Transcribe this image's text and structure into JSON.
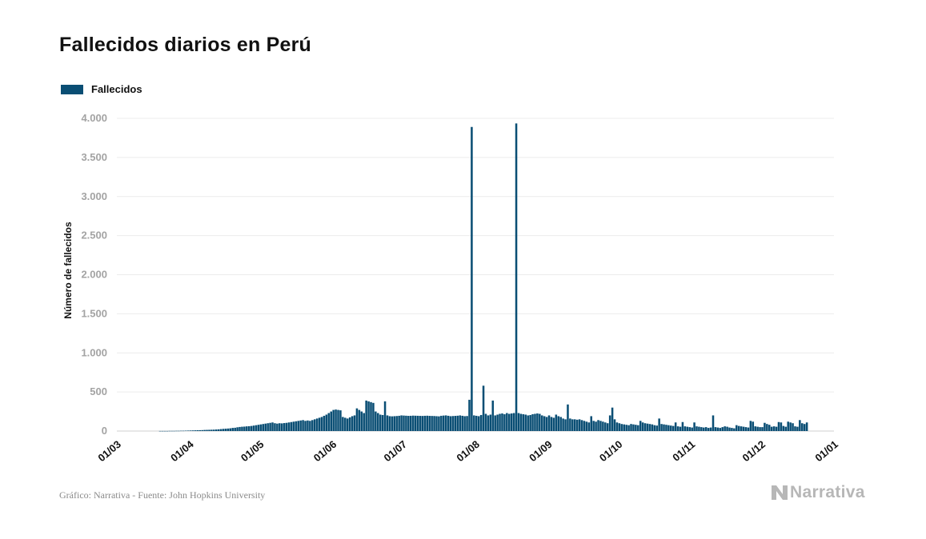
{
  "title": "Fallecidos diarios en Perú",
  "legend": {
    "label": "Fallecidos",
    "color": "#0a4e74"
  },
  "source": "Gráfico: Narrativa - Fuente: John Hopkins University",
  "brand": {
    "name": "Narrativa",
    "icon": "n-logo-icon",
    "color": "#b7b7b7"
  },
  "chart_data": {
    "type": "bar",
    "ylabel": "Número de fallecidos",
    "xlabel": "",
    "ylim": [
      0,
      4000
    ],
    "y_ticks": [
      0,
      500,
      1000,
      1500,
      2000,
      2500,
      3000,
      3500,
      4000
    ],
    "y_tick_labels": [
      "0",
      "500",
      "1.000",
      "1.500",
      "2.000",
      "2.500",
      "3.000",
      "3.500",
      "4.000"
    ],
    "x_ticks": [
      "2020-03-01",
      "2020-04-01",
      "2020-05-01",
      "2020-06-01",
      "2020-07-01",
      "2020-08-01",
      "2020-09-01",
      "2020-10-01",
      "2020-11-01",
      "2020-12-01",
      "2021-01-01"
    ],
    "x_tick_labels": [
      "01/03",
      "01/04",
      "01/05",
      "01/06",
      "01/07",
      "01/08",
      "01/09",
      "01/10",
      "01/11",
      "01/12",
      "01/01"
    ],
    "xlim": [
      "2020-03-01",
      "2021-01-01"
    ],
    "grid": true,
    "legend_position": "top-left",
    "series": [
      {
        "name": "Fallecidos",
        "color": "#0a4e74",
        "start_date": "2020-03-01",
        "values": [
          0,
          0,
          0,
          0,
          0,
          0,
          0,
          0,
          0,
          0,
          0,
          0,
          0,
          0,
          0,
          0,
          0,
          0,
          1,
          1,
          1,
          1,
          2,
          2,
          2,
          3,
          3,
          4,
          4,
          5,
          6,
          7,
          8,
          9,
          10,
          11,
          12,
          14,
          15,
          16,
          17,
          18,
          20,
          22,
          25,
          28,
          30,
          32,
          35,
          40,
          42,
          48,
          52,
          55,
          57,
          60,
          62,
          65,
          70,
          75,
          80,
          85,
          90,
          95,
          100,
          105,
          110,
          100,
          95,
          100,
          98,
          102,
          105,
          110,
          115,
          120,
          125,
          130,
          135,
          140,
          130,
          135,
          130,
          140,
          150,
          160,
          170,
          180,
          195,
          210,
          230,
          250,
          270,
          275,
          270,
          265,
          180,
          170,
          160,
          175,
          190,
          200,
          290,
          270,
          250,
          230,
          390,
          380,
          370,
          360,
          250,
          230,
          210,
          205,
          380,
          200,
          190,
          188,
          190,
          192,
          195,
          200,
          198,
          196,
          194,
          195,
          197,
          196,
          195,
          194,
          193,
          195,
          196,
          194,
          193,
          192,
          190,
          188,
          195,
          198,
          200,
          195,
          190,
          192,
          194,
          196,
          200,
          195,
          190,
          192,
          400,
          3890,
          200,
          195,
          190,
          205,
          580,
          220,
          200,
          210,
          390,
          200,
          210,
          220,
          225,
          215,
          230,
          220,
          225,
          230,
          3935,
          230,
          220,
          215,
          210,
          200,
          205,
          215,
          220,
          225,
          220,
          200,
          190,
          180,
          200,
          180,
          170,
          210,
          190,
          180,
          160,
          150,
          340,
          160,
          150,
          150,
          145,
          150,
          140,
          130,
          120,
          110,
          190,
          130,
          120,
          140,
          130,
          120,
          110,
          100,
          200,
          300,
          150,
          110,
          100,
          90,
          85,
          80,
          75,
          90,
          85,
          80,
          75,
          130,
          110,
          100,
          95,
          90,
          85,
          75,
          70,
          160,
          90,
          85,
          80,
          75,
          70,
          65,
          110,
          60,
          55,
          115,
          60,
          55,
          50,
          45,
          110,
          60,
          55,
          50,
          45,
          50,
          40,
          45,
          200,
          50,
          45,
          40,
          50,
          60,
          55,
          45,
          40,
          35,
          75,
          65,
          60,
          55,
          50,
          45,
          130,
          120,
          60,
          55,
          50,
          50,
          105,
          90,
          80,
          55,
          60,
          55,
          115,
          110,
          65,
          55,
          120,
          110,
          100,
          60,
          55,
          140,
          100,
          90,
          110,
          0,
          0,
          0,
          0,
          0,
          0,
          0,
          0,
          0,
          0,
          0,
          0,
          0,
          0,
          0,
          0,
          0,
          0,
          0,
          0,
          0,
          0
        ]
      }
    ]
  }
}
